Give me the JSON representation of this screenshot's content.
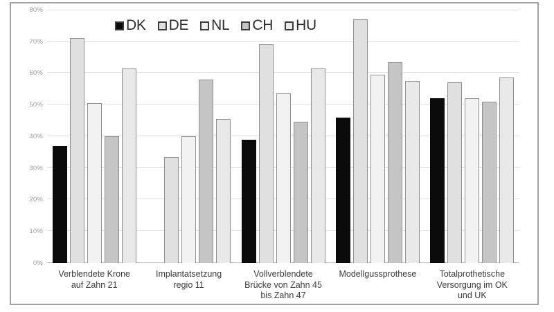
{
  "chart_data": {
    "type": "bar",
    "title": "",
    "xlabel": "",
    "ylabel": "",
    "ylim": [
      0,
      80
    ],
    "ytick_step": 10,
    "ytick_labels": [
      "0%",
      "10%",
      "20%",
      "30%",
      "40%",
      "50%",
      "60%",
      "70%",
      "80%"
    ],
    "grid": true,
    "legend_position": "top",
    "categories": [
      "Verblendete Krone auf Zahn 21",
      "Implantatsetzung regio 11",
      "Vollverblendete Brücke von Zahn 45 bis Zahn 47",
      "Modellgussprothese",
      "Totalprothetische Versorgung im OK und UK"
    ],
    "series": [
      {
        "name": "DK",
        "color": "#0b0b0b",
        "values": [
          37,
          null,
          39,
          46,
          52
        ]
      },
      {
        "name": "DE",
        "color": "#e0e0e0",
        "values": [
          71,
          33.5,
          69,
          77,
          57
        ]
      },
      {
        "name": "NL",
        "color": "#f2f2f2",
        "values": [
          50.5,
          40,
          53.5,
          59.5,
          52
        ]
      },
      {
        "name": "CH",
        "color": "#c5c5c5",
        "values": [
          40,
          58,
          44.5,
          63.5,
          51
        ]
      },
      {
        "name": "HU",
        "color": "#e8e8e8",
        "values": [
          61.5,
          45.5,
          61.5,
          57.5,
          58.5
        ]
      }
    ]
  },
  "colors": {
    "grid": "#dcdcdc",
    "frame_border": "#a2a2a2",
    "tick_label": "#9b9b9b",
    "category_label": "#3c3c3c",
    "legend_text": "#2d2d2d"
  }
}
